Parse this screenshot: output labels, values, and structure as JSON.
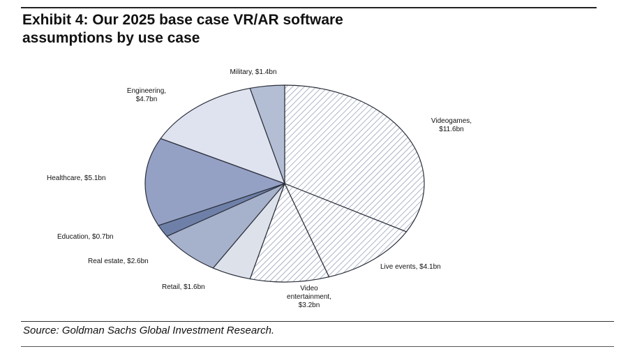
{
  "header": {
    "title_line1": "Exhibit 4: Our 2025 base case VR/AR software",
    "title_line2": "assumptions by use case"
  },
  "footer": {
    "source": "Source: Goldman Sachs Global Investment Research."
  },
  "chart_data": {
    "type": "pie",
    "title": "Exhibit 4: Our 2025 base case VR/AR software assumptions by use case",
    "unit": "$bn",
    "start": "12 o'clock",
    "direction": "clockwise",
    "slices": [
      {
        "name": "Videogames",
        "value": 11.6,
        "label_lines": [
          "Videogames,",
          "$11.6bn"
        ],
        "fill": "hatch",
        "color": "#ffffff"
      },
      {
        "name": "Live events",
        "value": 4.1,
        "label_lines": [
          "Live events, $4.1bn"
        ],
        "fill": "hatch",
        "color": "#ffffff"
      },
      {
        "name": "Video entertainment",
        "value": 3.2,
        "label_lines": [
          "Video",
          "entertainment,",
          "$3.2bn"
        ],
        "fill": "hatch",
        "color": "#ffffff"
      },
      {
        "name": "Retail",
        "value": 1.6,
        "label_lines": [
          "Retail, $1.6bn"
        ],
        "fill": "solid",
        "color": "#dde1ea"
      },
      {
        "name": "Real estate",
        "value": 2.6,
        "label_lines": [
          "Real estate, $2.6bn"
        ],
        "fill": "solid",
        "color": "#a6b1cb"
      },
      {
        "name": "Education",
        "value": 0.7,
        "label_lines": [
          "Education, $0.7bn"
        ],
        "fill": "solid",
        "color": "#6f80a8"
      },
      {
        "name": "Healthcare",
        "value": 5.1,
        "label_lines": [
          "Healthcare, $5.1bn"
        ],
        "fill": "solid",
        "color": "#94a0c4"
      },
      {
        "name": "Engineering",
        "value": 4.7,
        "label_lines": [
          "Engineering,",
          "$4.7bn"
        ],
        "fill": "solid",
        "color": "#dfe2ef"
      },
      {
        "name": "Military",
        "value": 1.4,
        "label_lines": [
          "Military, $1.4bn"
        ],
        "fill": "solid",
        "color": "#b3bdd3"
      }
    ],
    "hatch_color": "#7f8ca8",
    "outline_color": "#2a2f3a"
  }
}
